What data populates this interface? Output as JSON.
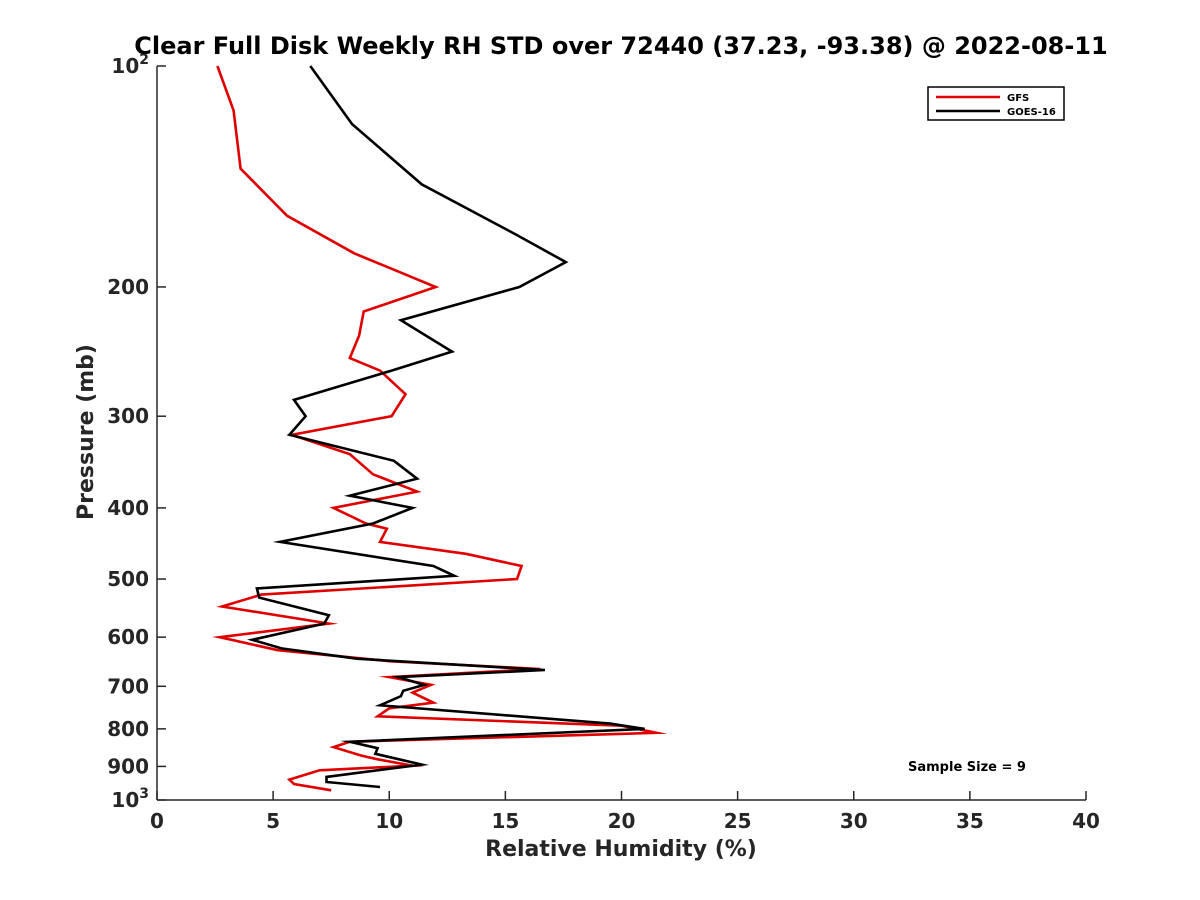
{
  "chart_data": {
    "type": "line",
    "title": "Clear Full Disk Weekly RH STD over 72440 (37.23, -93.38) @ 2022-08-11",
    "xlabel": "Relative Humidity (%)",
    "ylabel": "Pressure (mb)",
    "xlim": [
      0,
      40
    ],
    "ylim": [
      100,
      1000
    ],
    "y_scale": "log",
    "y_reversed": true,
    "grid": false,
    "x_ticks": [
      0,
      5,
      10,
      15,
      20,
      25,
      30,
      35,
      40
    ],
    "x_tick_labels": [
      "0",
      "5",
      "10",
      "15",
      "20",
      "25",
      "30",
      "35",
      "40"
    ],
    "y_ticks": [
      100,
      200,
      300,
      400,
      500,
      600,
      700,
      800,
      900,
      1000
    ],
    "y_tick_labels": [
      "10^2",
      "200",
      "300",
      "400",
      "500",
      "600",
      "700",
      "800",
      "900",
      "10^3"
    ],
    "legend_position": "top-right",
    "annotation": "Sample Size = 9",
    "series": [
      {
        "name": "GFS",
        "color": "#e00000",
        "points": [
          [
            2.6,
            100
          ],
          [
            3.3,
            115
          ],
          [
            3.6,
            138
          ],
          [
            5.6,
            160
          ],
          [
            8.5,
            180
          ],
          [
            12.0,
            200
          ],
          [
            8.9,
            216
          ],
          [
            8.7,
            233
          ],
          [
            8.3,
            250
          ],
          [
            9.6,
            260
          ],
          [
            10.7,
            280
          ],
          [
            10.1,
            300
          ],
          [
            5.8,
            318
          ],
          [
            8.3,
            338
          ],
          [
            9.3,
            360
          ],
          [
            11.2,
            380
          ],
          [
            7.6,
            400
          ],
          [
            9.0,
            420
          ],
          [
            9.9,
            427
          ],
          [
            9.6,
            445
          ],
          [
            13.3,
            462
          ],
          [
            15.7,
            480
          ],
          [
            15.5,
            500
          ],
          [
            11.0,
            510
          ],
          [
            4.5,
            525
          ],
          [
            2.8,
            545
          ],
          [
            7.4,
            575
          ],
          [
            2.7,
            600
          ],
          [
            5.2,
            625
          ],
          [
            10.0,
            647
          ],
          [
            16.5,
            663
          ],
          [
            10.0,
            680
          ],
          [
            11.8,
            697
          ],
          [
            11.0,
            714
          ],
          [
            11.9,
            737
          ],
          [
            10.0,
            750
          ],
          [
            9.5,
            769
          ],
          [
            20.0,
            792
          ],
          [
            21.5,
            810
          ],
          [
            8.3,
            833
          ],
          [
            7.6,
            847
          ],
          [
            8.8,
            870
          ],
          [
            9.5,
            880
          ],
          [
            11.0,
            898
          ],
          [
            7.0,
            911
          ],
          [
            5.7,
            938
          ],
          [
            5.9,
            951
          ],
          [
            7.5,
            970
          ]
        ]
      },
      {
        "name": "GOES-16",
        "color": "#000000",
        "points": [
          [
            6.6,
            100
          ],
          [
            8.4,
            120
          ],
          [
            11.4,
            145
          ],
          [
            15.5,
            170
          ],
          [
            17.6,
            185
          ],
          [
            15.6,
            200
          ],
          [
            10.5,
            222
          ],
          [
            12.7,
            245
          ],
          [
            10.1,
            260
          ],
          [
            5.9,
            285
          ],
          [
            6.4,
            300
          ],
          [
            5.7,
            318
          ],
          [
            10.2,
            345
          ],
          [
            11.2,
            365
          ],
          [
            8.3,
            385
          ],
          [
            11.0,
            400
          ],
          [
            9.3,
            420
          ],
          [
            5.3,
            445
          ],
          [
            11.9,
            480
          ],
          [
            12.8,
            495
          ],
          [
            4.3,
            515
          ],
          [
            4.4,
            530
          ],
          [
            7.4,
            560
          ],
          [
            7.2,
            575
          ],
          [
            4.1,
            605
          ],
          [
            5.4,
            622
          ],
          [
            8.6,
            642
          ],
          [
            16.7,
            665
          ],
          [
            10.4,
            680
          ],
          [
            11.5,
            697
          ],
          [
            10.6,
            710
          ],
          [
            10.5,
            722
          ],
          [
            9.6,
            743
          ],
          [
            19.5,
            787
          ],
          [
            21.0,
            800
          ],
          [
            8.3,
            833
          ],
          [
            9.5,
            850
          ],
          [
            9.4,
            865
          ],
          [
            11.4,
            895
          ],
          [
            7.3,
            930
          ],
          [
            7.3,
            945
          ],
          [
            9.6,
            960
          ]
        ]
      }
    ]
  }
}
